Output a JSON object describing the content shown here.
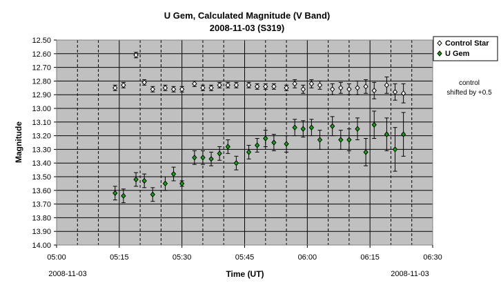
{
  "chart_data": {
    "type": "scatter",
    "title_line1": "U Gem,   Calculated Magnitude (V Band)",
    "title_line2": "2008-11-03 (S319)",
    "xlabel": "Time (UT)",
    "ylabel": "Magnitude",
    "x_range": [
      "05:00",
      "06:30"
    ],
    "x_ticks": [
      "05:00",
      "05:15",
      "05:30",
      "05:45",
      "06:00",
      "06:15",
      "06:30"
    ],
    "x_date_left": "2008-11-03",
    "x_date_right": "2008-11-03",
    "ylim": [
      12.5,
      14.0
    ],
    "y_inverted": true,
    "y_ticks": [
      "12.50",
      "12.60",
      "12.70",
      "12.80",
      "12.90",
      "13.00",
      "13.10",
      "13.20",
      "13.30",
      "13.40",
      "13.50",
      "13.60",
      "13.70",
      "13.80",
      "13.90",
      "14.00"
    ],
    "grid": true,
    "grid_x_major": "solid",
    "grid_x_minor": "dashed",
    "plot_background": "#c0c0c0",
    "legend_position": "right",
    "annotation": [
      "control",
      "shifted by +0.5"
    ],
    "series": [
      {
        "name": "Control Star",
        "color": "#ffffff",
        "marker": "diamond-open",
        "points": [
          {
            "x": "05:14",
            "y": 12.85,
            "err": 0.02
          },
          {
            "x": "05:16",
            "y": 12.83,
            "err": 0.02
          },
          {
            "x": "05:19",
            "y": 12.61,
            "err": 0.02
          },
          {
            "x": "05:21",
            "y": 12.81,
            "err": 0.02
          },
          {
            "x": "05:23",
            "y": 12.86,
            "err": 0.02
          },
          {
            "x": "05:26",
            "y": 12.85,
            "err": 0.02
          },
          {
            "x": "05:28",
            "y": 12.86,
            "err": 0.02
          },
          {
            "x": "05:30",
            "y": 12.86,
            "err": 0.02
          },
          {
            "x": "05:33",
            "y": 12.82,
            "err": 0.02
          },
          {
            "x": "05:35",
            "y": 12.85,
            "err": 0.02
          },
          {
            "x": "05:37",
            "y": 12.85,
            "err": 0.02
          },
          {
            "x": "05:39",
            "y": 12.83,
            "err": 0.02
          },
          {
            "x": "05:41",
            "y": 12.83,
            "err": 0.02
          },
          {
            "x": "05:43",
            "y": 12.83,
            "err": 0.02
          },
          {
            "x": "05:46",
            "y": 12.83,
            "err": 0.02
          },
          {
            "x": "05:48",
            "y": 12.84,
            "err": 0.02
          },
          {
            "x": "05:50",
            "y": 12.84,
            "err": 0.02
          },
          {
            "x": "05:52",
            "y": 12.84,
            "err": 0.02
          },
          {
            "x": "05:55",
            "y": 12.85,
            "err": 0.02
          },
          {
            "x": "05:57",
            "y": 12.82,
            "err": 0.03
          },
          {
            "x": "05:59",
            "y": 12.86,
            "err": 0.03
          },
          {
            "x": "06:01",
            "y": 12.82,
            "err": 0.03
          },
          {
            "x": "06:03",
            "y": 12.83,
            "err": 0.03
          },
          {
            "x": "06:06",
            "y": 12.86,
            "err": 0.04
          },
          {
            "x": "06:08",
            "y": 12.85,
            "err": 0.04
          },
          {
            "x": "06:10",
            "y": 12.86,
            "err": 0.04
          },
          {
            "x": "06:12",
            "y": 12.85,
            "err": 0.05
          },
          {
            "x": "06:14",
            "y": 12.84,
            "err": 0.05
          },
          {
            "x": "06:16",
            "y": 12.87,
            "err": 0.06
          },
          {
            "x": "06:19",
            "y": 12.83,
            "err": 0.06
          },
          {
            "x": "06:21",
            "y": 12.88,
            "err": 0.06
          },
          {
            "x": "06:23",
            "y": 12.89,
            "err": 0.07
          }
        ]
      },
      {
        "name": "U Gem",
        "color": "#00b000",
        "marker": "diamond-filled",
        "points": [
          {
            "x": "05:14",
            "y": 13.62,
            "err": 0.05
          },
          {
            "x": "05:16",
            "y": 13.64,
            "err": 0.05
          },
          {
            "x": "05:19",
            "y": 13.52,
            "err": 0.05
          },
          {
            "x": "05:21",
            "y": 13.53,
            "err": 0.05
          },
          {
            "x": "05:23",
            "y": 13.63,
            "err": 0.05
          },
          {
            "x": "05:26",
            "y": 13.55,
            "err": 0.05
          },
          {
            "x": "05:28",
            "y": 13.48,
            "err": 0.05
          },
          {
            "x": "05:30",
            "y": 13.55,
            "err": 0.02
          },
          {
            "x": "05:33",
            "y": 13.36,
            "err": 0.05
          },
          {
            "x": "05:35",
            "y": 13.36,
            "err": 0.05
          },
          {
            "x": "05:37",
            "y": 13.37,
            "err": 0.05
          },
          {
            "x": "05:39",
            "y": 13.33,
            "err": 0.05
          },
          {
            "x": "05:41",
            "y": 13.28,
            "err": 0.05
          },
          {
            "x": "05:43",
            "y": 13.4,
            "err": 0.05
          },
          {
            "x": "05:46",
            "y": 13.32,
            "err": 0.05
          },
          {
            "x": "05:48",
            "y": 13.27,
            "err": 0.05
          },
          {
            "x": "05:50",
            "y": 13.22,
            "err": 0.06
          },
          {
            "x": "05:52",
            "y": 13.25,
            "err": 0.06
          },
          {
            "x": "05:55",
            "y": 13.26,
            "err": 0.06
          },
          {
            "x": "05:57",
            "y": 13.14,
            "err": 0.06
          },
          {
            "x": "05:59",
            "y": 13.15,
            "err": 0.06
          },
          {
            "x": "06:01",
            "y": 13.14,
            "err": 0.06
          },
          {
            "x": "06:03",
            "y": 13.23,
            "err": 0.07
          },
          {
            "x": "06:06",
            "y": 13.13,
            "err": 0.07
          },
          {
            "x": "06:08",
            "y": 13.23,
            "err": 0.07
          },
          {
            "x": "06:10",
            "y": 13.23,
            "err": 0.08
          },
          {
            "x": "06:12",
            "y": 13.15,
            "err": 0.08
          },
          {
            "x": "06:14",
            "y": 13.32,
            "err": 0.1
          },
          {
            "x": "06:16",
            "y": 13.12,
            "err": 0.1
          },
          {
            "x": "06:19",
            "y": 13.19,
            "err": 0.12
          },
          {
            "x": "06:21",
            "y": 13.3,
            "err": 0.16
          },
          {
            "x": "06:23",
            "y": 13.19,
            "err": 0.16
          }
        ]
      }
    ]
  }
}
